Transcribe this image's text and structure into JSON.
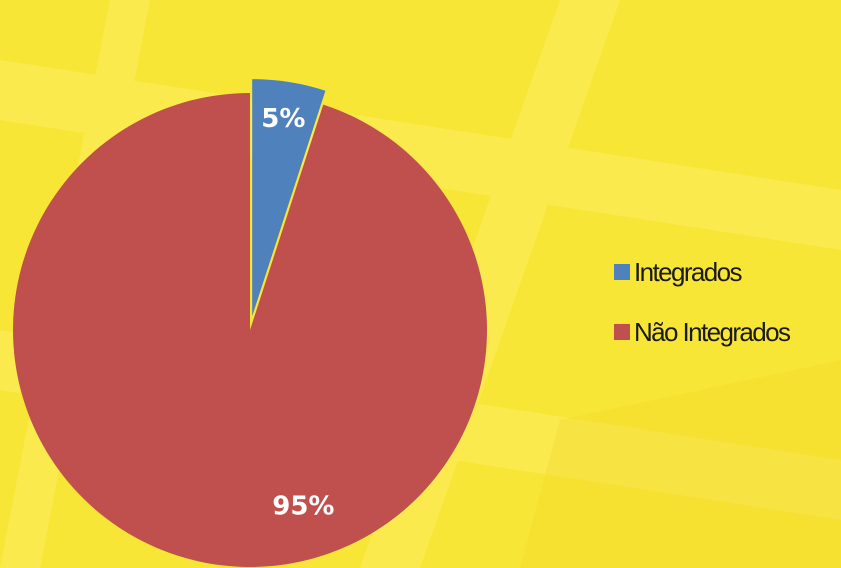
{
  "chart_data": {
    "type": "pie",
    "title": "",
    "categories": [
      "Integrados",
      "Não Integrados"
    ],
    "values": [
      5,
      95
    ],
    "data_labels": [
      "5%",
      "95%"
    ],
    "colors": [
      "#4f81bd",
      "#c0504d"
    ],
    "exploded": [
      true,
      false
    ],
    "start_angle_deg": 0,
    "legend_position": "right"
  },
  "colors": {
    "background": "#f8e636",
    "background_band": "#fbe94a"
  }
}
